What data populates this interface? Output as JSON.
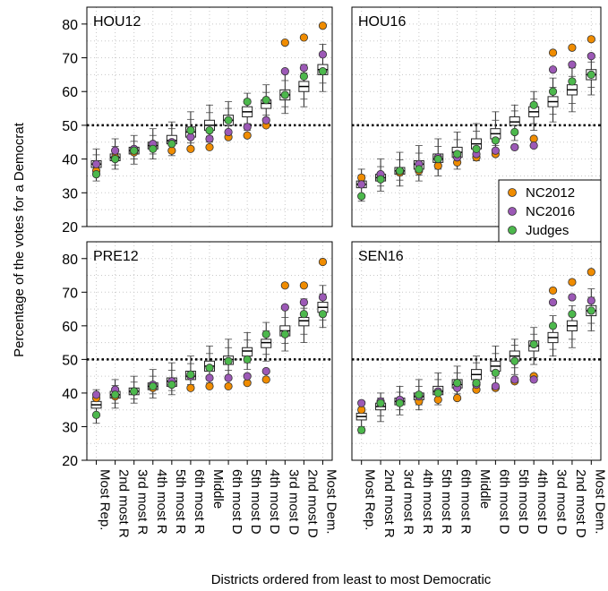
{
  "chart_data": {
    "type": "boxplot",
    "ylabel": "Percentage of the votes for a Democrat",
    "xlabel": "Districts ordered from least to most Democratic",
    "ylim": [
      20,
      85
    ],
    "yticks": [
      20,
      30,
      40,
      50,
      60,
      70,
      80
    ],
    "reference_line": 50,
    "categories": [
      "Most Rep.",
      "2nd most R",
      "3rd most R",
      "4th most R",
      "5th most R",
      "6th most R",
      "Middle",
      "6th most D",
      "5th most D",
      "4th most D",
      "3rd most D",
      "2nd most D",
      "Most Dem."
    ],
    "legend": {
      "placement": "right-middle",
      "entries": [
        {
          "name": "NC2012",
          "color": "#f08c00"
        },
        {
          "name": "NC2016",
          "color": "#9c59b6"
        },
        {
          "name": "Judges",
          "color": "#4cb84c"
        }
      ]
    },
    "panels": [
      {
        "title": "HOU12",
        "boxes": [
          {
            "whisker_low": 33.5,
            "q1": 37.5,
            "median": 38.5,
            "q3": 39.5,
            "whisker_high": 43
          },
          {
            "whisker_low": 37,
            "q1": 39.5,
            "median": 40.5,
            "q3": 41.5,
            "whisker_high": 46
          },
          {
            "whisker_low": 38.5,
            "q1": 41.5,
            "median": 42.5,
            "q3": 43.5,
            "whisker_high": 47
          },
          {
            "whisker_low": 40,
            "q1": 43,
            "median": 44,
            "q3": 45,
            "whisker_high": 49
          },
          {
            "whisker_low": 41,
            "q1": 44.5,
            "median": 45.5,
            "q3": 47,
            "whisker_high": 51
          },
          {
            "whisker_low": 43,
            "q1": 46.5,
            "median": 48,
            "q3": 49.5,
            "whisker_high": 54
          },
          {
            "whisker_low": 45,
            "q1": 48.5,
            "median": 50,
            "q3": 51.5,
            "whisker_high": 56
          },
          {
            "whisker_low": 46.5,
            "q1": 50,
            "median": 51.5,
            "q3": 53,
            "whisker_high": 57
          },
          {
            "whisker_low": 48.5,
            "q1": 52.5,
            "median": 54,
            "q3": 55.5,
            "whisker_high": 59.5
          },
          {
            "whisker_low": 51,
            "q1": 55,
            "median": 56.5,
            "q3": 57.5,
            "whisker_high": 62
          },
          {
            "whisker_low": 53.5,
            "q1": 57.5,
            "median": 59,
            "q3": 60.5,
            "whisker_high": 66
          },
          {
            "whisker_low": 55.5,
            "q1": 60,
            "median": 61.5,
            "q3": 63,
            "whisker_high": 68
          },
          {
            "whisker_low": 60,
            "q1": 65,
            "median": 66.5,
            "q3": 68,
            "whisker_high": 74
          }
        ],
        "NC2012": [
          36.5,
          40.5,
          42,
          43.5,
          42.5,
          43,
          43.5,
          46.5,
          47,
          50,
          74.5,
          76,
          79.5
        ],
        "NC2016": [
          38.5,
          42.5,
          43,
          44.5,
          45,
          46.5,
          46,
          48,
          49.5,
          51.5,
          66,
          67,
          71
        ],
        "Judges": [
          35.5,
          40,
          42.5,
          43,
          44.5,
          48.5,
          48.5,
          51.5,
          57,
          57.5,
          59,
          64.5,
          66
        ]
      },
      {
        "title": "HOU16",
        "boxes": [
          {
            "whisker_low": 27.5,
            "q1": 31.5,
            "median": 32.5,
            "q3": 33.5,
            "whisker_high": 37
          },
          {
            "whisker_low": 30.5,
            "q1": 33.5,
            "median": 34.5,
            "q3": 35.5,
            "whisker_high": 40
          },
          {
            "whisker_low": 32,
            "q1": 35.5,
            "median": 36.5,
            "q3": 37.5,
            "whisker_high": 42
          },
          {
            "whisker_low": 33.5,
            "q1": 37,
            "median": 38.5,
            "q3": 39.5,
            "whisker_high": 44
          },
          {
            "whisker_low": 35,
            "q1": 39,
            "median": 40,
            "q3": 41.5,
            "whisker_high": 46
          },
          {
            "whisker_low": 37,
            "q1": 40.5,
            "median": 42,
            "q3": 43.5,
            "whisker_high": 48
          },
          {
            "whisker_low": 39.5,
            "q1": 43,
            "median": 44.5,
            "q3": 46,
            "whisker_high": 50.5
          },
          {
            "whisker_low": 42,
            "q1": 46,
            "median": 47.5,
            "q3": 49,
            "whisker_high": 54
          },
          {
            "whisker_low": 45.5,
            "q1": 50,
            "median": 51,
            "q3": 52.5,
            "whisker_high": 56
          },
          {
            "whisker_low": 48.5,
            "q1": 52.5,
            "median": 54,
            "q3": 55.5,
            "whisker_high": 60
          },
          {
            "whisker_low": 51,
            "q1": 55.5,
            "median": 57,
            "q3": 58.5,
            "whisker_high": 64
          },
          {
            "whisker_low": 54,
            "q1": 59,
            "median": 60.5,
            "q3": 62,
            "whisker_high": 67
          },
          {
            "whisker_low": 59,
            "q1": 63.5,
            "median": 65,
            "q3": 66.5,
            "whisker_high": 71
          }
        ],
        "NC2012": [
          34.5,
          35.5,
          36,
          36.5,
          38,
          39,
          40.5,
          41.5,
          43.5,
          46,
          71.5,
          73,
          75.5
        ],
        "NC2016": [
          32.5,
          35.5,
          36.5,
          38.5,
          40.5,
          40.5,
          41.5,
          42.5,
          43.5,
          44,
          66.5,
          68,
          70.5
        ],
        "Judges": [
          29,
          34,
          36.5,
          37,
          40,
          41.5,
          43,
          45.5,
          48,
          56,
          60,
          63,
          65
        ]
      },
      {
        "title": "PRE12",
        "boxes": [
          {
            "whisker_low": 31,
            "q1": 35.5,
            "median": 36.5,
            "q3": 37.5,
            "whisker_high": 41
          },
          {
            "whisker_low": 35.5,
            "q1": 38.5,
            "median": 39.5,
            "q3": 40.5,
            "whisker_high": 44
          },
          {
            "whisker_low": 37,
            "q1": 39.5,
            "median": 40.5,
            "q3": 41.5,
            "whisker_high": 45
          },
          {
            "whisker_low": 38.5,
            "q1": 41,
            "median": 42,
            "q3": 43,
            "whisker_high": 47
          },
          {
            "whisker_low": 39.5,
            "q1": 42,
            "median": 43.5,
            "q3": 44.5,
            "whisker_high": 49
          },
          {
            "whisker_low": 41,
            "q1": 44,
            "median": 45,
            "q3": 46.5,
            "whisker_high": 51
          },
          {
            "whisker_low": 43,
            "q1": 46.5,
            "median": 48,
            "q3": 49.5,
            "whisker_high": 54
          },
          {
            "whisker_low": 45,
            "q1": 48.5,
            "median": 50,
            "q3": 51,
            "whisker_high": 56
          },
          {
            "whisker_low": 47,
            "q1": 51,
            "median": 52.5,
            "q3": 53.5,
            "whisker_high": 58
          },
          {
            "whisker_low": 49.5,
            "q1": 53.5,
            "median": 55,
            "q3": 56,
            "whisker_high": 61
          },
          {
            "whisker_low": 52.5,
            "q1": 57,
            "median": 58.5,
            "q3": 60,
            "whisker_high": 65
          },
          {
            "whisker_low": 55,
            "q1": 60,
            "median": 61.5,
            "q3": 62.5,
            "whisker_high": 68
          },
          {
            "whisker_low": 59.5,
            "q1": 64,
            "median": 65.5,
            "q3": 67,
            "whisker_high": 72
          }
        ],
        "NC2012": [
          38.5,
          39,
          40.5,
          41.5,
          42.5,
          41.5,
          42,
          42,
          43,
          44,
          72,
          72,
          79
        ],
        "NC2016": [
          39.5,
          41,
          40.5,
          42.5,
          43.5,
          45,
          44.5,
          44.5,
          45,
          46.5,
          65.5,
          67,
          68.5
        ],
        "Judges": [
          33.5,
          39.5,
          40.5,
          42,
          42.5,
          45.5,
          47.5,
          49.5,
          50,
          57.5,
          57.5,
          63.5,
          63.5
        ]
      },
      {
        "title": "SEN16",
        "boxes": [
          {
            "whisker_low": 28,
            "q1": 32,
            "median": 33,
            "q3": 34,
            "whisker_high": 37.5
          },
          {
            "whisker_low": 31.5,
            "q1": 35,
            "median": 36,
            "q3": 37,
            "whisker_high": 40
          },
          {
            "whisker_low": 33.5,
            "q1": 36.5,
            "median": 37.5,
            "q3": 38.5,
            "whisker_high": 42
          },
          {
            "whisker_low": 35,
            "q1": 38,
            "median": 39,
            "q3": 40,
            "whisker_high": 44
          },
          {
            "whisker_low": 36.5,
            "q1": 39.5,
            "median": 40.5,
            "q3": 42,
            "whisker_high": 46
          },
          {
            "whisker_low": 38,
            "q1": 41.5,
            "median": 42.5,
            "q3": 44,
            "whisker_high": 48
          },
          {
            "whisker_low": 40.5,
            "q1": 44,
            "median": 45.5,
            "q3": 47,
            "whisker_high": 51
          },
          {
            "whisker_low": 42.5,
            "q1": 46.5,
            "median": 48,
            "q3": 49.5,
            "whisker_high": 54
          },
          {
            "whisker_low": 45.5,
            "q1": 49.5,
            "median": 51,
            "q3": 52.5,
            "whisker_high": 56
          },
          {
            "whisker_low": 48.5,
            "q1": 52.5,
            "median": 54,
            "q3": 55.5,
            "whisker_high": 59.5
          },
          {
            "whisker_low": 51,
            "q1": 55,
            "median": 56.5,
            "q3": 58,
            "whisker_high": 63
          },
          {
            "whisker_low": 53.5,
            "q1": 58.5,
            "median": 60,
            "q3": 61.5,
            "whisker_high": 66
          },
          {
            "whisker_low": 58.5,
            "q1": 63,
            "median": 64.5,
            "q3": 66,
            "whisker_high": 71
          }
        ],
        "NC2012": [
          35,
          37,
          37.5,
          37.5,
          38,
          38.5,
          41,
          41.5,
          43.5,
          45,
          70.5,
          73,
          76
        ],
        "NC2016": [
          37,
          37.5,
          38,
          39,
          40.5,
          41.5,
          42.5,
          42,
          44,
          44,
          67,
          68.5,
          67.5
        ],
        "Judges": [
          29,
          37,
          37,
          39.5,
          40,
          43,
          43,
          46,
          49.5,
          54.5,
          60,
          63.5,
          64.5
        ]
      }
    ]
  }
}
